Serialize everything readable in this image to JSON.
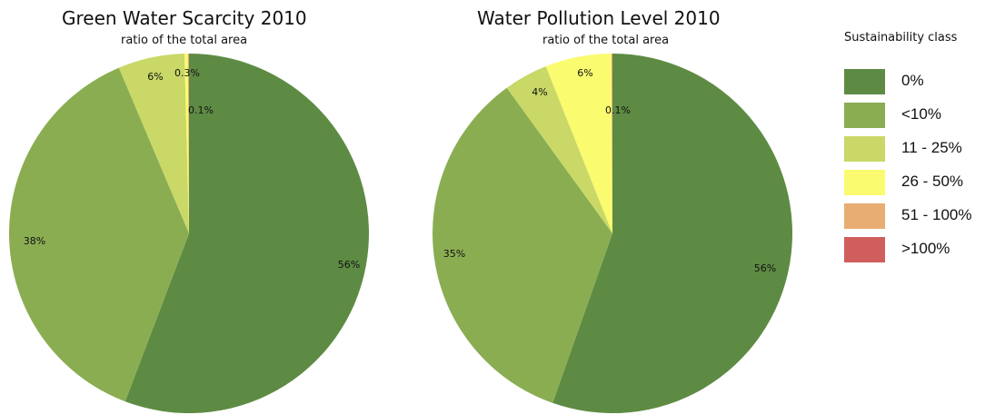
{
  "legend": {
    "title": "Sustainability class",
    "items": [
      {
        "label": "0%",
        "color": "#5e8b43"
      },
      {
        "label": "<10%",
        "color": "#8aad52"
      },
      {
        "label": "11 - 25%",
        "color": "#c9d866"
      },
      {
        "label": "26 - 50%",
        "color": "#fbfb70"
      },
      {
        "label": "51 - 100%",
        "color": "#e8ad72"
      },
      {
        "label": ">100%",
        "color": "#cf5e5d"
      }
    ]
  },
  "chart_data": [
    {
      "type": "pie",
      "title": "Green Water Scarcity 2010",
      "subtitle": "ratio of the total area",
      "slices": [
        {
          "class": "0%",
          "value": 56,
          "label": "56%"
        },
        {
          "class": "<10%",
          "value": 38,
          "label": "38%"
        },
        {
          "class": "11 - 25%",
          "value": 6,
          "label": "6%"
        },
        {
          "class": "26 - 50%",
          "value": 0.3,
          "label": "0.3%"
        },
        {
          "class": "51 - 100%",
          "value": 0.1,
          "label": "0.1%"
        }
      ]
    },
    {
      "type": "pie",
      "title": "Water Pollution Level 2010",
      "subtitle": "ratio of the total area",
      "slices": [
        {
          "class": "0%",
          "value": 56,
          "label": "56%"
        },
        {
          "class": "<10%",
          "value": 35,
          "label": "35%"
        },
        {
          "class": "11 - 25%",
          "value": 4,
          "label": "4%"
        },
        {
          "class": "26 - 50%",
          "value": 6,
          "label": "6%"
        },
        {
          "class": "51 - 100%",
          "value": 0.1,
          "label": "0.1%"
        }
      ]
    }
  ]
}
